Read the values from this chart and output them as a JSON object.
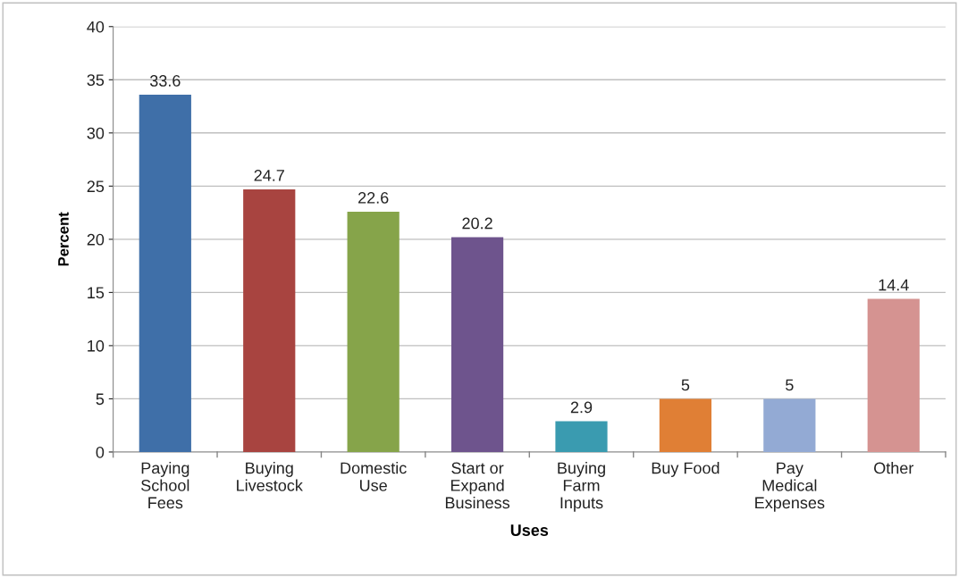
{
  "chart_data": {
    "type": "bar",
    "xlabel": "Uses",
    "ylabel": "Percent",
    "categories": [
      "Paying\nSchool\nFees",
      "Buying\nLivestock",
      "Domestic\nUse",
      "Start or\nExpand\nBusiness",
      "Buying\nFarm\nInputs",
      "Buy Food",
      "Pay\nMedical\nExpenses",
      "Other"
    ],
    "values": [
      33.6,
      24.7,
      22.6,
      20.2,
      2.9,
      5,
      5,
      14.4
    ],
    "colors": [
      "#3f6fa8",
      "#a84440",
      "#86a44a",
      "#6e548d",
      "#3a9bb0",
      "#e07f35",
      "#93aad4",
      "#d59391"
    ],
    "ylim": [
      0,
      40
    ],
    "yticks": [
      0,
      5,
      10,
      15,
      20,
      25,
      30,
      35,
      40
    ],
    "grid": "y",
    "data_labels": true,
    "legend": false
  }
}
